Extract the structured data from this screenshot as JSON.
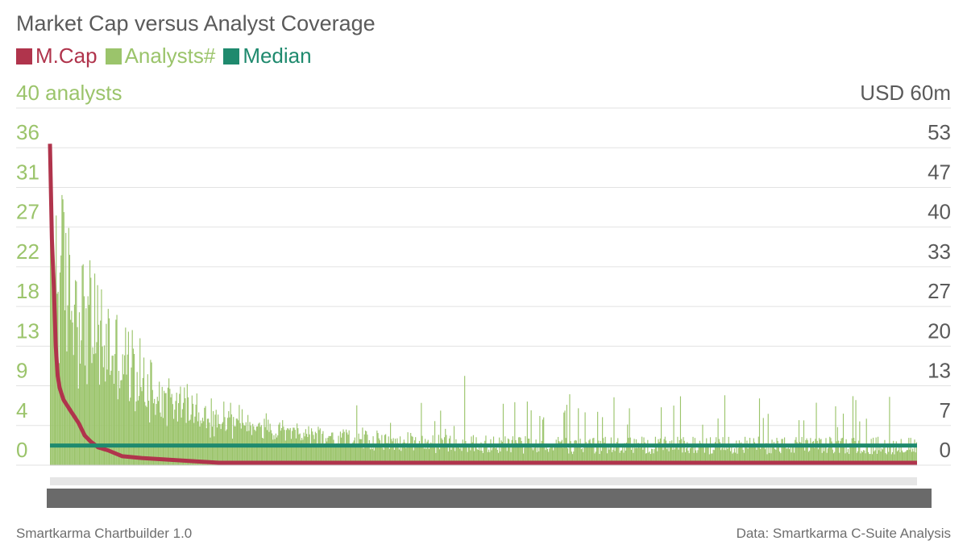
{
  "chart_data": {
    "type": "bar",
    "title": "Market Cap versus Analyst Coverage",
    "legend": [
      {
        "label": "M.Cap",
        "color": "#b0344c"
      },
      {
        "label": "Analysts#",
        "color": "#9bc46b"
      },
      {
        "label": "Median",
        "color": "#1f8a6e"
      }
    ],
    "left_axis": {
      "unit_label": "40 analysts",
      "ticks": [
        "36",
        "31",
        "27",
        "22",
        "18",
        "13",
        "9",
        "4",
        "0"
      ],
      "ylim": [
        0,
        40
      ]
    },
    "right_axis": {
      "unit_label": "USD 60m",
      "ticks": [
        "53",
        "47",
        "40",
        "33",
        "27",
        "20",
        "13",
        "7",
        "0"
      ],
      "ylim": [
        0,
        60
      ]
    },
    "series": [
      {
        "name": "Analysts#",
        "kind": "bar",
        "count": 900,
        "profile": {
          "decay_scale": 90,
          "head_peak": 33,
          "tail_level": 2.2,
          "tail_spikes": [
            8,
            10
          ]
        }
      },
      {
        "name": "M.Cap",
        "kind": "line",
        "points": [
          [
            0,
            54
          ],
          [
            2,
            38
          ],
          [
            4,
            30
          ],
          [
            6,
            20
          ],
          [
            8,
            15
          ],
          [
            10,
            13
          ],
          [
            14,
            11
          ],
          [
            18,
            10
          ],
          [
            22,
            9
          ],
          [
            26,
            8
          ],
          [
            30,
            7
          ],
          [
            36,
            5
          ],
          [
            42,
            4
          ],
          [
            50,
            3
          ],
          [
            60,
            2.5
          ],
          [
            75,
            1.5
          ],
          [
            95,
            1.2
          ],
          [
            175,
            0.4
          ],
          [
            899,
            0.4
          ]
        ]
      },
      {
        "name": "Median",
        "kind": "line",
        "value": 2.2
      }
    ],
    "grid": true,
    "legend_position": "top-left"
  },
  "footer": {
    "left": "Smartkarma Chartbuilder 1.0",
    "right": "Data: Smartkarma C-Suite Analysis"
  }
}
